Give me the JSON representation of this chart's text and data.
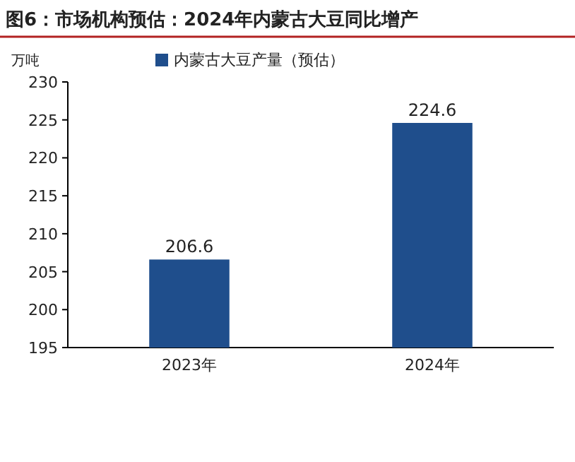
{
  "chart_data": {
    "type": "bar",
    "title": "图6：市场机构预估：2024年内蒙古大豆同比增产",
    "ylabel": "万吨",
    "categories": [
      "2023年",
      "2024年"
    ],
    "series": [
      {
        "name": "内蒙古大豆产量（预估）",
        "color": "#1f4e8c",
        "values": [
          206.6,
          224.6
        ]
      }
    ],
    "ylim": [
      195,
      230
    ],
    "yticks": [
      195,
      200,
      205,
      210,
      215,
      220,
      225,
      230
    ],
    "data_labels": true,
    "legend": "top left",
    "grid": false
  }
}
